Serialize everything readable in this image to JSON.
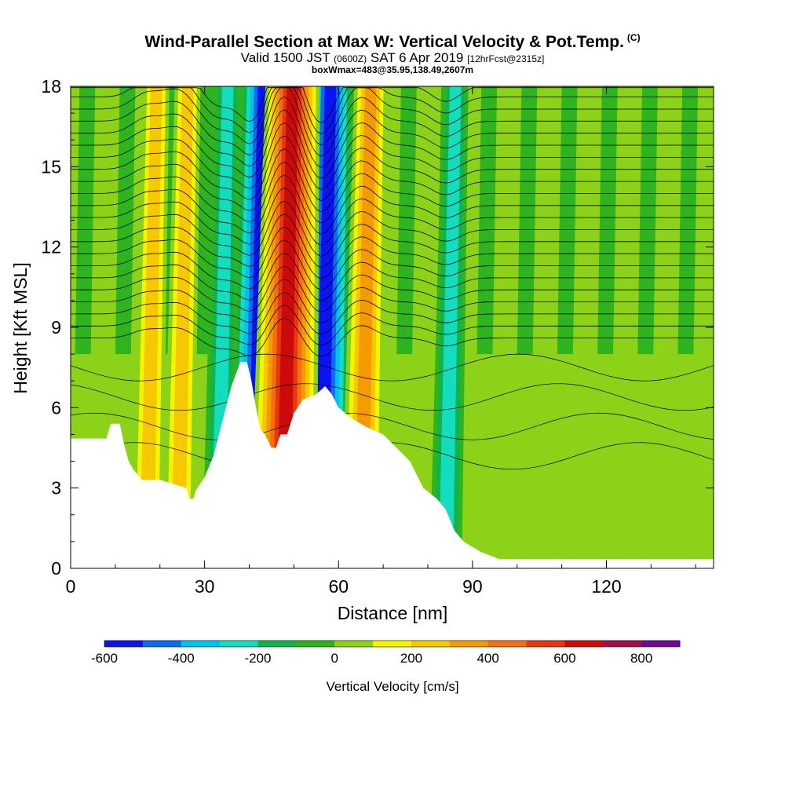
{
  "title": {
    "main": "Wind-Parallel Section at Max W: Vertical Velocity & Pot.Temp.",
    "copyright": "(C)",
    "valid_prefix": "Valid 1500 JST",
    "valid_utc": "(0600Z)",
    "valid_date": "SAT 6 Apr 2019",
    "forecast": "[12hrFcst@2315z]",
    "box": "boxWmax=483@35.95,138.49,2607m"
  },
  "chart_data": {
    "type": "heatmap",
    "xlabel": "Distance [nm]",
    "ylabel": "Height [Kft MSL]",
    "xlim": [
      0,
      144
    ],
    "ylim": [
      0,
      18
    ],
    "x_ticks": [
      0,
      30,
      60,
      90,
      120
    ],
    "y_ticks": [
      0,
      3,
      6,
      9,
      12,
      15,
      18
    ],
    "colorbar": {
      "title": "Vertical Velocity [cm/s]",
      "levels": [
        -600,
        -500,
        -400,
        -300,
        -200,
        -100,
        0,
        100,
        200,
        300,
        400,
        500,
        600,
        700,
        800,
        900
      ],
      "tick_labels": [
        "-600",
        "-400",
        "-200",
        "0",
        "200",
        "400",
        "600",
        "800"
      ],
      "tick_values": [
        -600,
        -400,
        -200,
        0,
        200,
        400,
        600,
        800
      ],
      "colors": [
        "#0b13f0",
        "#0a6cf0",
        "#00c2f0",
        "#14dcbf",
        "#11b44b",
        "#2db41e",
        "#8cd219",
        "#f5f500",
        "#f5c800",
        "#f59b00",
        "#f56e0f",
        "#e6370f",
        "#cd0a0a",
        "#a0104b",
        "#6e0a96"
      ]
    },
    "terrain_kft": [
      [
        0,
        4.85
      ],
      [
        8,
        4.85
      ],
      [
        9,
        5.4
      ],
      [
        11,
        5.4
      ],
      [
        12,
        4.6
      ],
      [
        13,
        4.0
      ],
      [
        14,
        3.7
      ],
      [
        15,
        3.5
      ],
      [
        16,
        3.3
      ],
      [
        20,
        3.3
      ],
      [
        26,
        3.0
      ],
      [
        26.5,
        2.6
      ],
      [
        27.5,
        2.6
      ],
      [
        28,
        2.9
      ],
      [
        30,
        3.4
      ],
      [
        32,
        4.2
      ],
      [
        34,
        5.5
      ],
      [
        36,
        6.8
      ],
      [
        38,
        7.7
      ],
      [
        39.5,
        7.7
      ],
      [
        40.5,
        7.0
      ],
      [
        41.5,
        6.0
      ],
      [
        42.5,
        5.2
      ],
      [
        43.5,
        5.0
      ],
      [
        45,
        4.5
      ],
      [
        46,
        4.5
      ],
      [
        47,
        5.0
      ],
      [
        48.5,
        5.0
      ],
      [
        50,
        5.8
      ],
      [
        52,
        6.3
      ],
      [
        55,
        6.5
      ],
      [
        57,
        6.8
      ],
      [
        58.5,
        6.5
      ],
      [
        60,
        6.0
      ],
      [
        63,
        5.6
      ],
      [
        66,
        5.3
      ],
      [
        70,
        5.0
      ],
      [
        73,
        4.5
      ],
      [
        76,
        4.0
      ],
      [
        79,
        3.0
      ],
      [
        82,
        2.6
      ],
      [
        84,
        2.2
      ],
      [
        86,
        1.4
      ],
      [
        88,
        1.0
      ],
      [
        92,
        0.6
      ],
      [
        96,
        0.35
      ],
      [
        144,
        0.35
      ]
    ],
    "updraft_cores": [
      {
        "x": 47.5,
        "w_cm_s": 700
      },
      {
        "x": 65,
        "w_cm_s": 400
      },
      {
        "x": 24,
        "w_cm_s": 300
      },
      {
        "x": 17,
        "w_cm_s": 250
      }
    ],
    "downdraft_cores": [
      {
        "x": 41,
        "w_cm_s": -600
      },
      {
        "x": 56,
        "w_cm_s": -600
      },
      {
        "x": 33,
        "w_cm_s": -300
      },
      {
        "x": 84,
        "w_cm_s": -250
      }
    ]
  }
}
